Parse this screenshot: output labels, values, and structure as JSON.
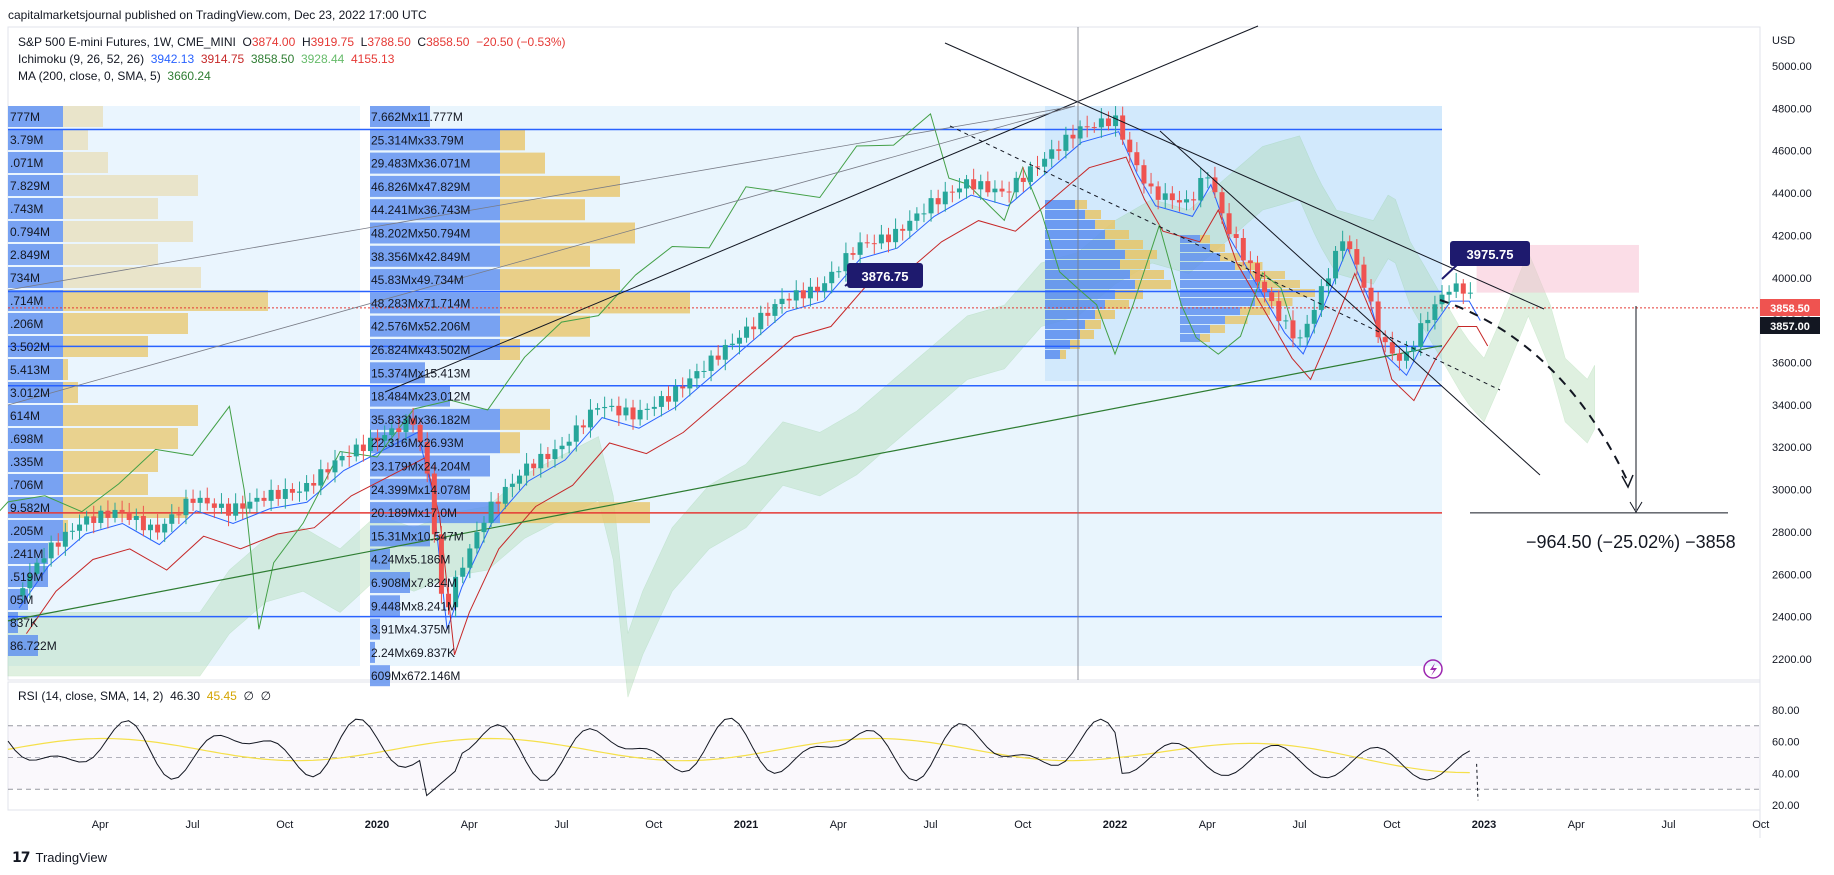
{
  "header": {
    "published": "capitalmarketsjournal published on TradingView.com, Dec 23, 2022 17:00 UTC"
  },
  "legend": {
    "symbol": "S&P 500 E-mini Futures, 1W, CME_MINI",
    "ohlc": {
      "o_label": "O",
      "o": "3874.00",
      "h_label": "H",
      "h": "3919.75",
      "l_label": "L",
      "l": "3788.50",
      "c_label": "C",
      "c": "3858.50",
      "chg": "−20.50 (−0.53%)"
    },
    "ichimoku": {
      "label": "Ichimoku (9, 26, 52, 26)",
      "v1": "3942.13",
      "v2": "3914.75",
      "v3": "3858.50",
      "v4": "3928.44",
      "v5": "4155.13"
    },
    "ma": {
      "label": "MA (200, close, 0, SMA, 5)",
      "v": "3660.24"
    },
    "rsi": {
      "label": "RSI (14, close, SMA, 14, 2)",
      "v1": "46.30",
      "v2": "45.45",
      "v3": "∅",
      "v4": "∅"
    }
  },
  "colors": {
    "up": "#26a69a",
    "down": "#ef5350",
    "ichimoku_blue": "#2962ff",
    "ichimoku_red": "#e53935",
    "cloud": "#a5d6a7",
    "cloud_red": "#f8bbd0",
    "vp_blue": "#5b8def",
    "vp_gold": "#e8c56a",
    "zone_bg": "#e3f2fd",
    "rsi_line": "#131722",
    "rsi_ma": "#f5e04b",
    "ma200": "#2e7d32",
    "callout": "#1e1a6e"
  },
  "axes": {
    "currency": "USD",
    "price_ticks": [
      "5000.00",
      "4800.00",
      "4600.00",
      "4400.00",
      "4200.00",
      "4000.00",
      "3800.00",
      "3600.00",
      "3400.00",
      "3200.00",
      "3000.00",
      "2800.00",
      "2600.00",
      "2400.00",
      "2200.00"
    ],
    "rsi_ticks": [
      "80.00",
      "60.00",
      "40.00",
      "20.00"
    ],
    "time_labels": [
      "Apr",
      "Jul",
      "Oct",
      "2020",
      "Apr",
      "Jul",
      "Oct",
      "2021",
      "Apr",
      "Jul",
      "Oct",
      "2022",
      "Apr",
      "Jul",
      "Oct",
      "2023",
      "Apr",
      "Jul",
      "Oct"
    ],
    "price_tag_last": "3858.50",
    "price_tag_cross": "3857.00"
  },
  "annotations": {
    "callout_1": "3876.75",
    "callout_2": "3975.75",
    "measure": "−964.50 (−25.02%) −3858"
  },
  "volume_profile_left": [
    "777M",
    "3.79M",
    ".071M",
    "7.829M",
    ".743M",
    "0.794M",
    "2.849M",
    "734M",
    ".714M",
    ".206M",
    "3.502M",
    "5.413M",
    "3.012M",
    "614M",
    ".698M",
    ".335M",
    ".706M",
    "9.582M",
    ".205M",
    ".241M",
    ".519M",
    "05M",
    "837K",
    "86.722M"
  ],
  "volume_profile_mid": [
    "7.662Mx11.777M",
    "25.314Mx33.79M",
    "29.483Mx36.071M",
    "46.826Mx47.829M",
    "44.241Mx36.743M",
    "48.202Mx50.794M",
    "38.356Mx42.849M",
    "45.83Mx49.734M",
    "48.283Mx71.714M",
    "42.576Mx52.206M",
    "26.824Mx43.502M",
    "15.374Mx15.413M",
    "18.484Mx23.012M",
    "35.833Mx36.182M",
    "22.316Mx26.93M",
    "23.179Mx24.204M",
    "24.399Mx14.078M",
    "20.189Mx17.0M",
    "15.31Mx10.547M",
    "4.24Mx5.186M",
    "6.908Mx7.824M",
    "9.448Mx8.241M",
    "3.91Mx4.375M",
    "2.24Mx69.837K",
    "609Mx672.146M"
  ],
  "footer": {
    "brand": "TradingView"
  }
}
